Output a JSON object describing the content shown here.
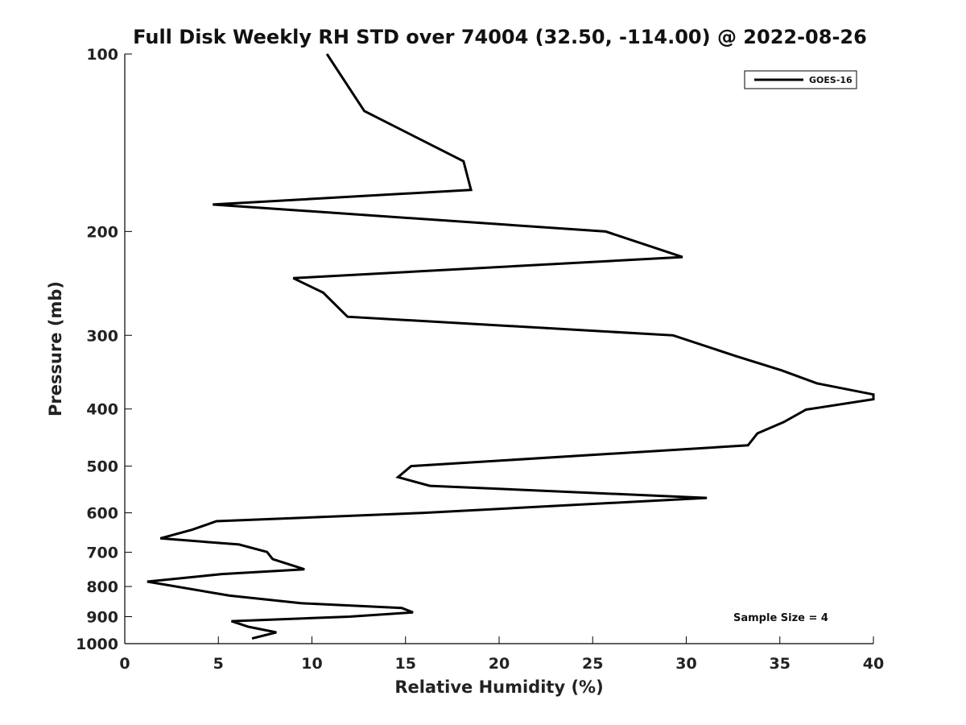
{
  "chart_data": {
    "type": "line",
    "title": "Full Disk Weekly RH STD over 74004 (32.50, -114.00) @ 2022-08-26",
    "xlabel": "Relative Humidity (%)",
    "ylabel": "Pressure (mb)",
    "xlim": [
      0,
      40
    ],
    "ylim": [
      100,
      1000
    ],
    "y_scale": "log",
    "y_reversed": true,
    "x_ticks": [
      "0",
      "5",
      "10",
      "15",
      "20",
      "25",
      "30",
      "35",
      "40"
    ],
    "y_ticks": [
      "100",
      "200",
      "300",
      "400",
      "500",
      "600",
      "700",
      "800",
      "900",
      "1000"
    ],
    "legend": {
      "entries": [
        "GOES-16"
      ],
      "placement": "top-right"
    },
    "annotation": "Sample Size = 4",
    "series": [
      {
        "name": "GOES-16",
        "color": "#000000",
        "points": [
          [
            10.8,
            100
          ],
          [
            12.8,
            125
          ],
          [
            18.1,
            152
          ],
          [
            18.5,
            170
          ],
          [
            4.7,
            180
          ],
          [
            25.7,
            200
          ],
          [
            29.8,
            221
          ],
          [
            9.0,
            240
          ],
          [
            10.6,
            254
          ],
          [
            11.9,
            279
          ],
          [
            29.3,
            300
          ],
          [
            32.6,
            325
          ],
          [
            35.1,
            344
          ],
          [
            37.0,
            362
          ],
          [
            40.0,
            378
          ],
          [
            40.0,
            385
          ],
          [
            36.4,
            401
          ],
          [
            35.2,
            421
          ],
          [
            33.8,
            440
          ],
          [
            33.3,
            461
          ],
          [
            15.3,
            500
          ],
          [
            14.6,
            522
          ],
          [
            16.3,
            540
          ],
          [
            31.1,
            566
          ],
          [
            16.0,
            600
          ],
          [
            4.9,
            620
          ],
          [
            3.6,
            641
          ],
          [
            1.9,
            663
          ],
          [
            6.1,
            679
          ],
          [
            7.6,
            699
          ],
          [
            7.9,
            719
          ],
          [
            9.6,
            748
          ],
          [
            5.2,
            762
          ],
          [
            1.2,
            785
          ],
          [
            5.6,
            829
          ],
          [
            9.4,
            854
          ],
          [
            14.8,
            870
          ],
          [
            15.4,
            885
          ],
          [
            12.0,
            900
          ],
          [
            5.7,
            916
          ],
          [
            6.6,
            936
          ],
          [
            8.1,
            957
          ],
          [
            6.8,
            980
          ]
        ]
      }
    ]
  }
}
